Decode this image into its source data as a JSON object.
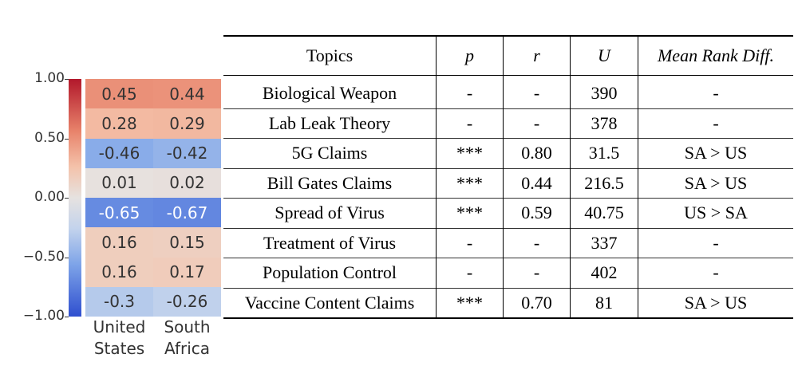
{
  "chart_data": [
    {
      "type": "heatmap",
      "columns": [
        "United States",
        "South Africa"
      ],
      "colorbar": {
        "ticks": [
          "1.00",
          "0.50",
          "0.00",
          "−0.50",
          "−1.00"
        ],
        "range": [
          -1,
          1
        ]
      },
      "values": [
        [
          0.45,
          0.44
        ],
        [
          0.28,
          0.29
        ],
        [
          -0.46,
          -0.42
        ],
        [
          0.01,
          0.02
        ],
        [
          -0.65,
          -0.67
        ],
        [
          0.16,
          0.15
        ],
        [
          0.16,
          0.17
        ],
        [
          -0.3,
          -0.26
        ]
      ],
      "labels": [
        [
          "0.45",
          "0.44"
        ],
        [
          "0.28",
          "0.29"
        ],
        [
          "-0.46",
          "-0.42"
        ],
        [
          "0.01",
          "0.02"
        ],
        [
          "-0.65",
          "-0.67"
        ],
        [
          "0.16",
          "0.15"
        ],
        [
          "0.16",
          "0.17"
        ],
        [
          "-0.3",
          "-0.26"
        ]
      ]
    },
    {
      "type": "table",
      "headers": [
        "Topics",
        "p",
        "r",
        "U",
        "Mean Rank Diff."
      ],
      "rows": [
        [
          "Biological Weapon",
          "-",
          "-",
          "390",
          "-"
        ],
        [
          "Lab Leak Theory",
          "-",
          "-",
          "378",
          "-"
        ],
        [
          "5G Claims",
          "***",
          "0.80",
          "31.5",
          "SA > US"
        ],
        [
          "Bill Gates Claims",
          "***",
          "0.44",
          "216.5",
          "SA > US"
        ],
        [
          "Spread of Virus",
          "***",
          "0.59",
          "40.75",
          "US > SA"
        ],
        [
          "Treatment of Virus",
          "-",
          "-",
          "337",
          "-"
        ],
        [
          "Population Control",
          "-",
          "-",
          "402",
          "-"
        ],
        [
          "Vaccine Content Claims",
          "***",
          "0.70",
          "81",
          "SA > US"
        ]
      ]
    }
  ]
}
